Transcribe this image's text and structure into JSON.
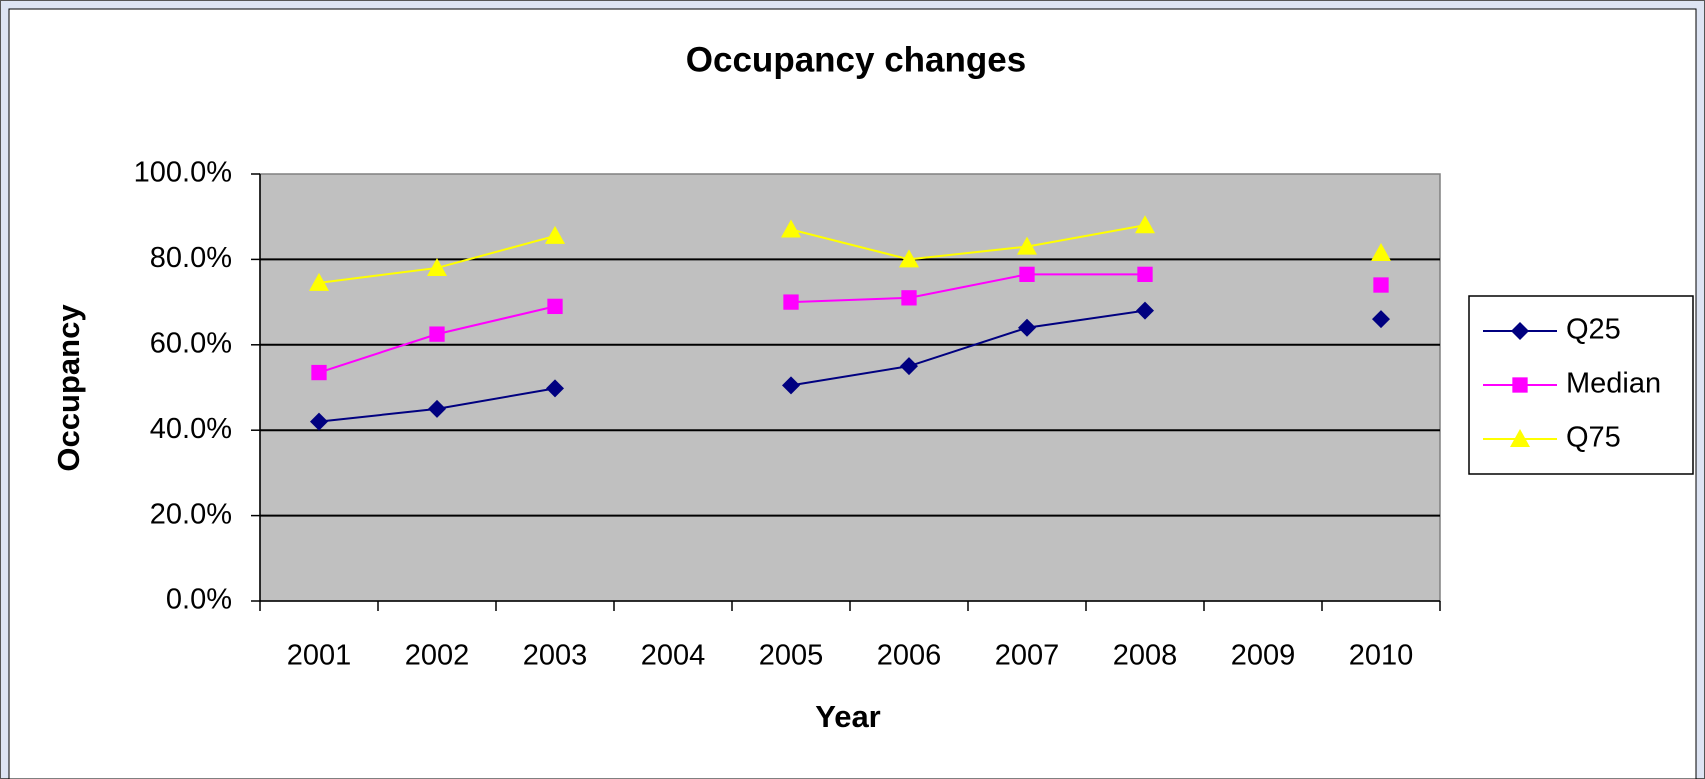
{
  "chart_data": {
    "type": "line",
    "title": "Occupancy changes",
    "x_label": "Year",
    "y_label": "Occupancy",
    "categories": [
      "2001",
      "2002",
      "2003",
      "2004",
      "2005",
      "2006",
      "2007",
      "2008",
      "2009",
      "2010"
    ],
    "series": [
      {
        "name": "Q25",
        "color": "#000080",
        "marker": "diamond",
        "values": [
          42,
          45,
          49.8,
          null,
          50.5,
          55,
          64,
          68,
          null,
          66
        ]
      },
      {
        "name": "Median",
        "color": "#ff00ff",
        "marker": "square",
        "values": [
          53.5,
          62.5,
          69,
          null,
          70,
          71,
          76.5,
          76.5,
          null,
          74
        ]
      },
      {
        "name": "Q75",
        "color": "#ffff00",
        "marker": "triangle",
        "values": [
          74.5,
          78,
          85.5,
          null,
          87,
          80,
          83,
          88,
          null,
          81.5
        ]
      }
    ],
    "ylim": [
      0,
      100
    ],
    "yticks": [
      {
        "value": 0,
        "label": "0.0%"
      },
      {
        "value": 20,
        "label": "20.0%"
      },
      {
        "value": 40,
        "label": "40.0%"
      },
      {
        "value": 60,
        "label": "60.0%"
      },
      {
        "value": 80,
        "label": "80.0%"
      },
      {
        "value": 100,
        "label": "100.0%"
      }
    ],
    "grid": true,
    "legend": "right"
  }
}
